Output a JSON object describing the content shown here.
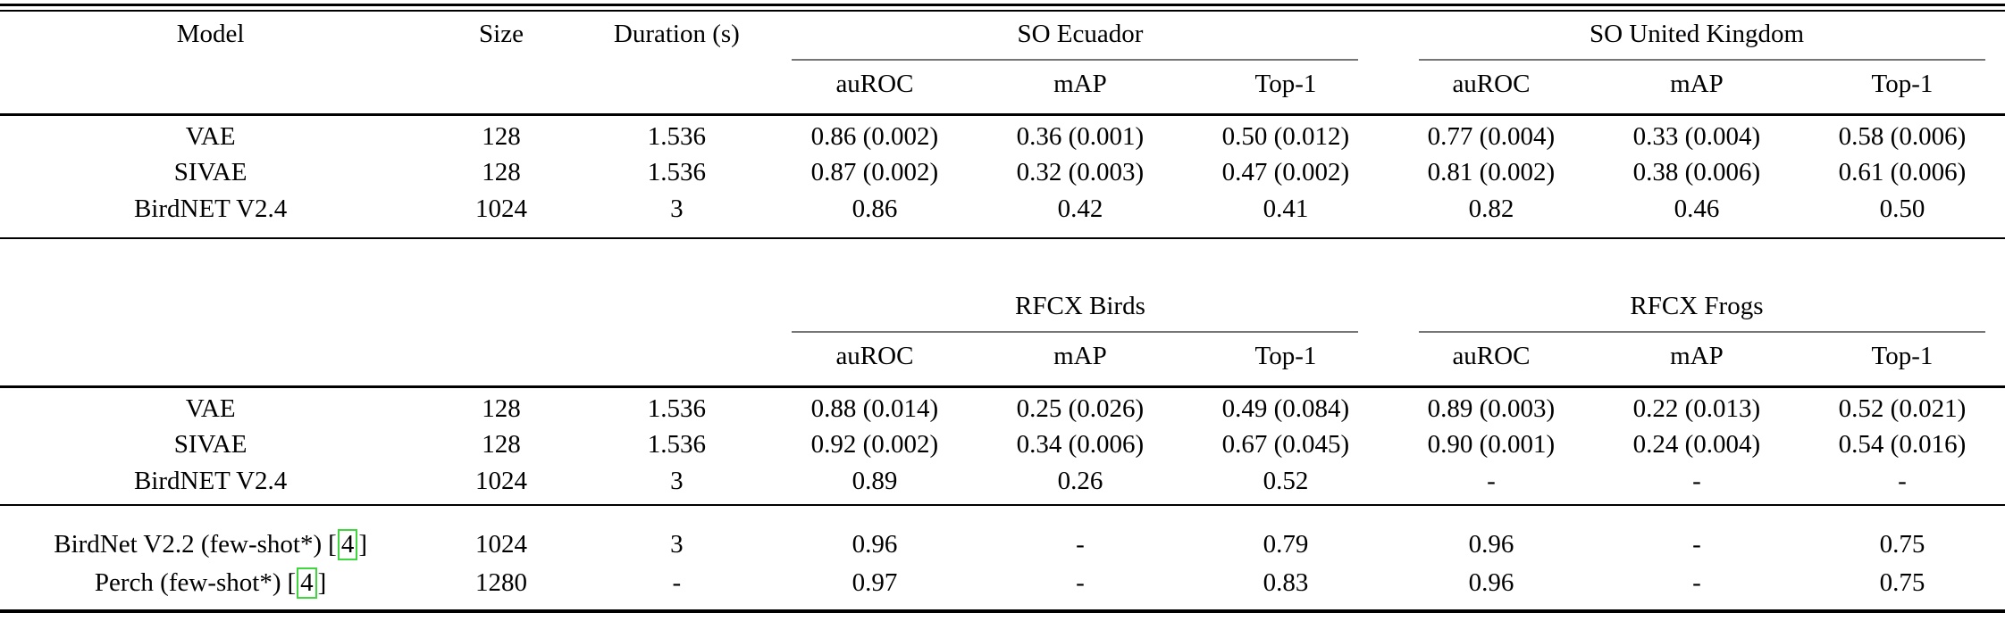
{
  "header": {
    "model": "Model",
    "size": "Size",
    "duration": "Duration (s)"
  },
  "metric_headers": [
    "auROC",
    "mAP",
    "Top-1"
  ],
  "section1": {
    "groups": [
      "SO Ecuador",
      "SO United Kingdom"
    ],
    "rows": [
      {
        "model": "VAE",
        "size": "128",
        "duration": "1.536",
        "values": [
          "0.86 (0.002)",
          "0.36 (0.001)",
          "0.50 (0.012)",
          "0.77 (0.004)",
          "0.33 (0.004)",
          "0.58 (0.006)"
        ]
      },
      {
        "model": "SIVAE",
        "size": "128",
        "duration": "1.536",
        "values": [
          "0.87 (0.002)",
          "0.32 (0.003)",
          "0.47 (0.002)",
          "0.81 (0.002)",
          "0.38 (0.006)",
          "0.61 (0.006)"
        ]
      },
      {
        "model": "BirdNET V2.4",
        "size": "1024",
        "duration": "3",
        "values": [
          "0.86",
          "0.42",
          "0.41",
          "0.82",
          "0.46",
          "0.50"
        ]
      }
    ]
  },
  "section2": {
    "groups": [
      "RFCX Birds",
      "RFCX Frogs"
    ],
    "rows": [
      {
        "model": "VAE",
        "size": "128",
        "duration": "1.536",
        "values": [
          "0.88 (0.014)",
          "0.25 (0.026)",
          "0.49 (0.084)",
          "0.89 (0.003)",
          "0.22 (0.013)",
          "0.52 (0.021)"
        ]
      },
      {
        "model": "SIVAE",
        "size": "128",
        "duration": "1.536",
        "values": [
          "0.92 (0.002)",
          "0.34 (0.006)",
          "0.67 (0.045)",
          "0.90 (0.001)",
          "0.24 (0.004)",
          "0.54 (0.016)"
        ]
      },
      {
        "model": "BirdNET V2.4",
        "size": "1024",
        "duration": "3",
        "values": [
          "0.89",
          "0.26",
          "0.52",
          "-",
          "-",
          "-"
        ]
      }
    ],
    "fewshot_rows": [
      {
        "model": "BirdNet V2.2 (few-shot*)",
        "cite_open": "[",
        "cite_num": "4",
        "cite_close": "]",
        "size": "1024",
        "duration": "3",
        "values": [
          "0.96",
          "-",
          "0.79",
          "0.96",
          "-",
          "0.75"
        ]
      },
      {
        "model": "Perch (few-shot*)",
        "cite_open": "[",
        "cite_num": "4",
        "cite_close": "]",
        "size": "1280",
        "duration": "-",
        "values": [
          "0.97",
          "-",
          "0.83",
          "0.96",
          "-",
          "0.75"
        ]
      }
    ]
  },
  "colors": {
    "citation_box": "#3fd63f",
    "rule": "#000000",
    "cmidrule": "#767676"
  }
}
